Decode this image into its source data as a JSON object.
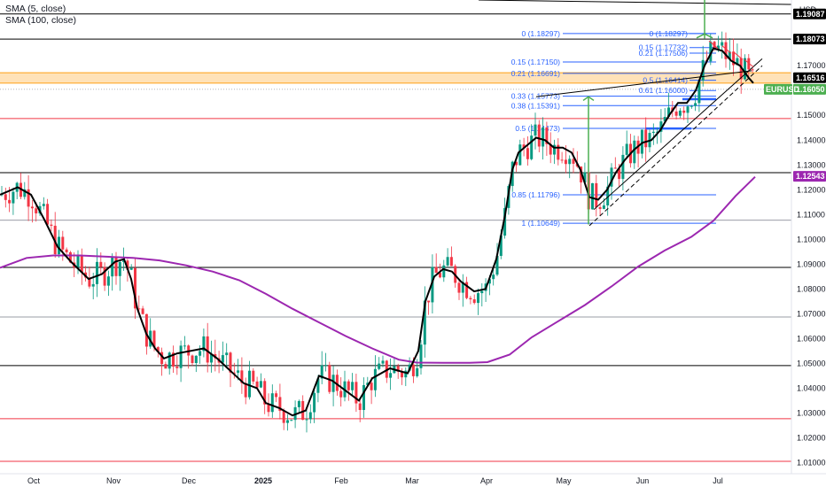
{
  "legend": {
    "sma5": "SMA (5, close)",
    "sma100": "SMA (100, close)"
  },
  "currency": "USD",
  "symbol": "EURUSD",
  "colors": {
    "up": "#089981",
    "down": "#f23645",
    "sma5": "#000000",
    "sma100": "#9c27b0",
    "fib": "#2962ff",
    "support_red": "#f23645",
    "zone": "#ff9800",
    "price_green": "#4caf50"
  },
  "chart_data": {
    "type": "candlestick",
    "x_axis": [
      "Oct",
      "Nov",
      "Dec",
      "2025",
      "Feb",
      "Mar",
      "Apr",
      "May",
      "Jun",
      "Jul"
    ],
    "y_axis": [
      1.01,
      1.02,
      1.03,
      1.04,
      1.05,
      1.06,
      1.07,
      1.08,
      1.09,
      1.1,
      1.11,
      1.12,
      1.13,
      1.14,
      1.15,
      1.16,
      1.17
    ],
    "y_range": [
      1.0055,
      1.1965
    ],
    "price_labels": [
      {
        "text": "1.19087",
        "value": 1.19087,
        "style": "black"
      },
      {
        "text": "1.18073",
        "value": 1.18073,
        "style": "black"
      },
      {
        "text": "1.16516",
        "value": 1.16516,
        "style": "black"
      },
      {
        "text": "1.16050",
        "value": 1.1605,
        "style": "green"
      },
      {
        "text": "1.12543",
        "value": 1.12543,
        "style": "purple"
      }
    ],
    "horizontal_levels": [
      {
        "value": 1.19087,
        "color": "black"
      },
      {
        "value": 1.18073,
        "color": "black"
      },
      {
        "value": 1.1487,
        "color": "red"
      },
      {
        "value": 1.1269,
        "color": "black"
      },
      {
        "value": 1.1077,
        "color": "gray"
      },
      {
        "value": 1.0887,
        "color": "black"
      },
      {
        "value": 1.0687,
        "color": "gray"
      },
      {
        "value": 1.0491,
        "color": "black"
      },
      {
        "value": 1.0277,
        "color": "red"
      },
      {
        "value": 1.0105,
        "color": "red"
      }
    ],
    "zone": [
      1.163,
      1.1672
    ],
    "fib_left": [
      {
        "label": "0 (1.18297)",
        "value": 1.18297
      },
      {
        "label": "0.15 (1.17150)",
        "value": 1.1715
      },
      {
        "label": "0.21 (1.16691)",
        "value": 1.16691
      },
      {
        "label": "0.33 (1.15773)",
        "value": 1.15773
      },
      {
        "label": "0.38 (1.15391)",
        "value": 1.15391
      },
      {
        "label": "0.5 (1.14473)",
        "value": 1.14473
      },
      {
        "label": "0.85 (1.11796)",
        "value": 1.11796
      },
      {
        "label": "1 (1.10649)",
        "value": 1.10649
      }
    ],
    "fib_right": [
      {
        "label": "0 (1.18297)",
        "value": 1.18297
      },
      {
        "label": "0.15 (1.17732)",
        "value": 1.17732
      },
      {
        "label": "0.21 (1.17506)",
        "value": 1.17506
      },
      {
        "label": "0.5 (1.16414)",
        "value": 1.16414
      },
      {
        "label": "0.61 (1.16000)",
        "value": 1.16
      }
    ],
    "sma5_points": [
      [
        0,
        1.118
      ],
      [
        20,
        1.121
      ],
      [
        35,
        1.118
      ],
      [
        50,
        1.108
      ],
      [
        65,
        1.097
      ],
      [
        80,
        1.091
      ],
      [
        100,
        1.084
      ],
      [
        115,
        1.086
      ],
      [
        130,
        1.091
      ],
      [
        140,
        1.092
      ],
      [
        148,
        1.084
      ],
      [
        155,
        1.072
      ],
      [
        165,
        1.062
      ],
      [
        175,
        1.056
      ],
      [
        185,
        1.052
      ],
      [
        200,
        1.054
      ],
      [
        215,
        1.055
      ],
      [
        230,
        1.056
      ],
      [
        245,
        1.052
      ],
      [
        260,
        1.047
      ],
      [
        275,
        1.042
      ],
      [
        290,
        1.04
      ],
      [
        300,
        1.034
      ],
      [
        315,
        1.032
      ],
      [
        330,
        1.029
      ],
      [
        345,
        1.031
      ],
      [
        360,
        1.045
      ],
      [
        375,
        1.043
      ],
      [
        390,
        1.039
      ],
      [
        405,
        1.035
      ],
      [
        420,
        1.044
      ],
      [
        440,
        1.048
      ],
      [
        460,
        1.046
      ],
      [
        472,
        1.055
      ],
      [
        480,
        1.075
      ],
      [
        490,
        1.085
      ],
      [
        500,
        1.088
      ],
      [
        510,
        1.087
      ],
      [
        520,
        1.083
      ],
      [
        535,
        1.079
      ],
      [
        548,
        1.08
      ],
      [
        560,
        1.092
      ],
      [
        570,
        1.11
      ],
      [
        578,
        1.128
      ],
      [
        585,
        1.135
      ],
      [
        595,
        1.138
      ],
      [
        605,
        1.141
      ],
      [
        615,
        1.14
      ],
      [
        625,
        1.137
      ],
      [
        635,
        1.137
      ],
      [
        645,
        1.135
      ],
      [
        655,
        1.128
      ],
      [
        665,
        1.117
      ],
      [
        675,
        1.116
      ],
      [
        685,
        1.12
      ],
      [
        695,
        1.127
      ],
      [
        705,
        1.132
      ],
      [
        715,
        1.136
      ],
      [
        725,
        1.139
      ],
      [
        735,
        1.14
      ],
      [
        745,
        1.144
      ],
      [
        755,
        1.15
      ],
      [
        765,
        1.155
      ],
      [
        775,
        1.155
      ],
      [
        785,
        1.16
      ],
      [
        795,
        1.17
      ],
      [
        805,
        1.177
      ],
      [
        815,
        1.176
      ],
      [
        825,
        1.172
      ],
      [
        835,
        1.17
      ],
      [
        845,
        1.165
      ],
      [
        850,
        1.163
      ]
    ],
    "sma100_points": [
      [
        0,
        1.0885
      ],
      [
        30,
        1.0925
      ],
      [
        60,
        1.0935
      ],
      [
        90,
        1.0935
      ],
      [
        120,
        1.093
      ],
      [
        150,
        1.0925
      ],
      [
        180,
        1.0915
      ],
      [
        210,
        1.0895
      ],
      [
        240,
        1.087
      ],
      [
        270,
        1.0835
      ],
      [
        300,
        1.078
      ],
      [
        330,
        1.072
      ],
      [
        360,
        1.0665
      ],
      [
        390,
        1.061
      ],
      [
        420,
        1.056
      ],
      [
        450,
        1.0515
      ],
      [
        470,
        1.0503
      ],
      [
        500,
        1.0502
      ],
      [
        530,
        1.0502
      ],
      [
        550,
        1.0505
      ],
      [
        575,
        1.0535
      ],
      [
        600,
        1.0605
      ],
      [
        630,
        1.067
      ],
      [
        660,
        1.0735
      ],
      [
        690,
        1.081
      ],
      [
        720,
        1.089
      ],
      [
        750,
        1.0955
      ],
      [
        780,
        1.101
      ],
      [
        805,
        1.1075
      ],
      [
        830,
        1.1175
      ],
      [
        852,
        1.1252
      ]
    ],
    "candles_seed": 7
  }
}
